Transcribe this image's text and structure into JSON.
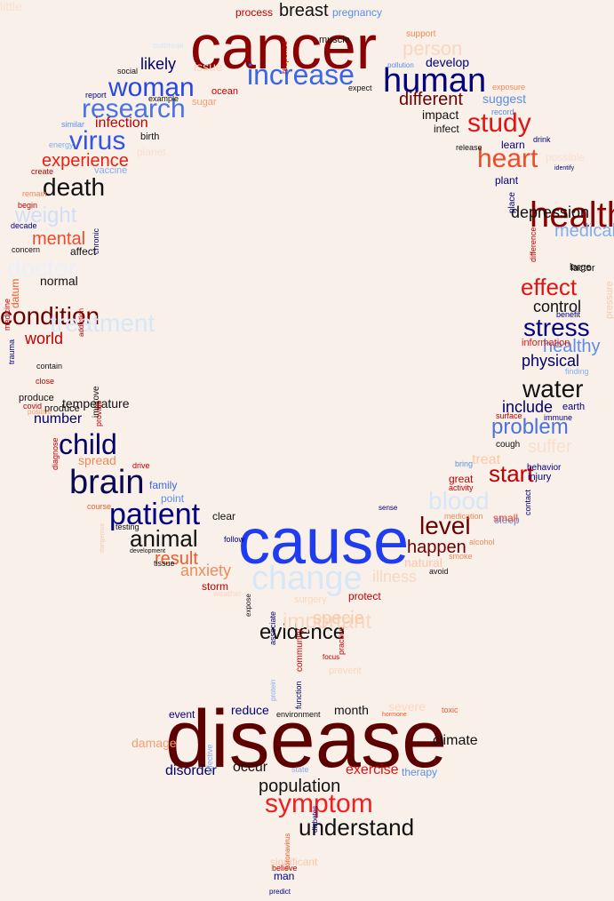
{
  "words": [
    {
      "text": "cancer",
      "size": 70,
      "color": "#8b0000"
    },
    {
      "text": "cause",
      "size": 72,
      "color": "#1f3cf0"
    },
    {
      "text": "disease",
      "size": 92,
      "color": "#5c0000"
    },
    {
      "text": "increase",
      "size": 32,
      "color": "#3a66e8"
    },
    {
      "text": "human",
      "size": 38,
      "color": "#000080"
    },
    {
      "text": "woman",
      "size": 30,
      "color": "#2846e0"
    },
    {
      "text": "research",
      "size": 30,
      "color": "#4a72e0"
    },
    {
      "text": "virus",
      "size": 30,
      "color": "#3354e4"
    },
    {
      "text": "study",
      "size": 30,
      "color": "#e01414"
    },
    {
      "text": "heart",
      "size": 30,
      "color": "#f04a2a"
    },
    {
      "text": "health",
      "size": 40,
      "color": "#8b0000"
    },
    {
      "text": "brain",
      "size": 38,
      "color": "#0a0a50"
    },
    {
      "text": "patient",
      "size": 34,
      "color": "#000080"
    },
    {
      "text": "child",
      "size": 32,
      "color": "#000066"
    },
    {
      "text": "death",
      "size": 28,
      "color": "#111111"
    },
    {
      "text": "water",
      "size": 28,
      "color": "#111111"
    },
    {
      "text": "stress",
      "size": 28,
      "color": "#000080"
    },
    {
      "text": "effect",
      "size": 26,
      "color": "#e01414"
    },
    {
      "text": "problem",
      "size": 24,
      "color": "#4a72e0"
    },
    {
      "text": "animal",
      "size": 26,
      "color": "#111111"
    },
    {
      "text": "level",
      "size": 28,
      "color": "#6b0000"
    },
    {
      "text": "change",
      "size": 38,
      "color": "#d6e8f8"
    },
    {
      "text": "blood",
      "size": 28,
      "color": "#d6e8f8"
    },
    {
      "text": "doctor",
      "size": 28,
      "color": "#e8f0fa"
    },
    {
      "text": "weight",
      "size": 24,
      "color": "#cfe0f6"
    },
    {
      "text": "person",
      "size": 22,
      "color": "#fbd6c0"
    },
    {
      "text": "condition",
      "size": 28,
      "color": "#6b0000"
    },
    {
      "text": "treatment",
      "size": 28,
      "color": "#d6e8f8"
    },
    {
      "text": "symptom",
      "size": 30,
      "color": "#f02020"
    },
    {
      "text": "understand",
      "size": 26,
      "color": "#111111"
    },
    {
      "text": "evidence",
      "size": 24,
      "color": "#111111"
    },
    {
      "text": "important",
      "size": 24,
      "color": "#fbd6c0"
    },
    {
      "text": "specie",
      "size": 20,
      "color": "#fbc8a8"
    },
    {
      "text": "population",
      "size": 20,
      "color": "#111111"
    },
    {
      "text": "breast",
      "size": 20,
      "color": "#111111"
    },
    {
      "text": "experience",
      "size": 20,
      "color": "#e82010"
    },
    {
      "text": "mental",
      "size": 20,
      "color": "#f04a2a"
    },
    {
      "text": "different",
      "size": 20,
      "color": "#6b0000"
    },
    {
      "text": "result",
      "size": 20,
      "color": "#f05a2a"
    },
    {
      "text": "happen",
      "size": 20,
      "color": "#6b0000"
    },
    {
      "text": "start",
      "size": 26,
      "color": "#c00000"
    },
    {
      "text": "medical",
      "size": 20,
      "color": "#80aef0"
    },
    {
      "text": "depression",
      "size": 18,
      "color": "#111111"
    },
    {
      "text": "healthy",
      "size": 20,
      "color": "#5a8ee8"
    },
    {
      "text": "physical",
      "size": 18,
      "color": "#000066"
    },
    {
      "text": "control",
      "size": 18,
      "color": "#111111"
    },
    {
      "text": "include",
      "size": 18,
      "color": "#000066"
    },
    {
      "text": "suffer",
      "size": 20,
      "color": "#f8e0d0"
    },
    {
      "text": "world",
      "size": 18,
      "color": "#c00000"
    },
    {
      "text": "anxiety",
      "size": 18,
      "color": "#f08a5a"
    },
    {
      "text": "illness",
      "size": 18,
      "color": "#f8d8c0"
    },
    {
      "text": "natural",
      "size": 14,
      "color": "#fbc8a8"
    },
    {
      "text": "likely",
      "size": 18,
      "color": "#000066"
    },
    {
      "text": "infection",
      "size": 16,
      "color": "#c00000"
    },
    {
      "text": "number",
      "size": 16,
      "color": "#000066"
    },
    {
      "text": "spread",
      "size": 14,
      "color": "#f08a5a"
    },
    {
      "text": "temperature",
      "size": 14,
      "color": "#111111"
    },
    {
      "text": "normal",
      "size": 14,
      "color": "#111111"
    },
    {
      "text": "develop",
      "size": 14,
      "color": "#000080"
    },
    {
      "text": "suggest",
      "size": 14,
      "color": "#5a8ee8"
    },
    {
      "text": "impact",
      "size": 14,
      "color": "#111111"
    },
    {
      "text": "climate",
      "size": 16,
      "color": "#111111"
    },
    {
      "text": "exercise",
      "size": 16,
      "color": "#e01414"
    },
    {
      "text": "disorder",
      "size": 16,
      "color": "#000066"
    },
    {
      "text": "occur",
      "size": 16,
      "color": "#111111"
    },
    {
      "text": "month",
      "size": 14,
      "color": "#111111"
    },
    {
      "text": "reduce",
      "size": 14,
      "color": "#000080"
    },
    {
      "text": "damage",
      "size": 14,
      "color": "#f0a070"
    },
    {
      "text": "severe",
      "size": 14,
      "color": "#fbd6c0"
    },
    {
      "text": "storm",
      "size": 12,
      "color": "#c00000"
    },
    {
      "text": "treat",
      "size": 16,
      "color": "#fbc8a8"
    },
    {
      "text": "sleep",
      "size": 12,
      "color": "#5a8ee8"
    },
    {
      "text": "family",
      "size": 12,
      "color": "#3a66e8"
    },
    {
      "text": "pregnancy",
      "size": 12,
      "color": "#5a8ee8"
    },
    {
      "text": "process",
      "size": 12,
      "color": "#c00000"
    },
    {
      "text": "issue",
      "size": 14,
      "color": "#f8d8c0"
    },
    {
      "text": "affect",
      "size": 12,
      "color": "#111111"
    },
    {
      "text": "point",
      "size": 12,
      "color": "#5a8ee8"
    },
    {
      "text": "clear",
      "size": 12,
      "color": "#111111"
    },
    {
      "text": "great",
      "size": 12,
      "color": "#c00000"
    },
    {
      "text": "small",
      "size": 12,
      "color": "#f04a2a"
    },
    {
      "text": "protect",
      "size": 12,
      "color": "#c00000"
    },
    {
      "text": "event",
      "size": 12,
      "color": "#000080"
    },
    {
      "text": "therapy",
      "size": 12,
      "color": "#5a8ee8"
    },
    {
      "text": "man",
      "size": 12,
      "color": "#000080"
    },
    {
      "text": "infect",
      "size": 12,
      "color": "#111111"
    },
    {
      "text": "learn",
      "size": 12,
      "color": "#000080"
    },
    {
      "text": "plant",
      "size": 12,
      "color": "#000080"
    },
    {
      "text": "factor",
      "size": 11,
      "color": "#111111"
    },
    {
      "text": "large",
      "size": 11,
      "color": "#111111"
    },
    {
      "text": "earth",
      "size": 11,
      "color": "#000080"
    },
    {
      "text": "injury",
      "size": 11,
      "color": "#000080"
    },
    {
      "text": "behavior",
      "size": 10,
      "color": "#000080"
    },
    {
      "text": "cough",
      "size": 10,
      "color": "#111111"
    },
    {
      "text": "produce",
      "size": 11,
      "color": "#111111"
    },
    {
      "text": "produce",
      "size": 11,
      "color": "#111111"
    },
    {
      "text": "vaccine",
      "size": 11,
      "color": "#80aef0"
    },
    {
      "text": "birth",
      "size": 11,
      "color": "#111111"
    },
    {
      "text": "example",
      "size": 9,
      "color": "#111111"
    },
    {
      "text": "similar",
      "size": 9,
      "color": "#5a8ee8"
    },
    {
      "text": "energy",
      "size": 9,
      "color": "#80aef0"
    },
    {
      "text": "create",
      "size": 9,
      "color": "#c00000"
    },
    {
      "text": "remain",
      "size": 9,
      "color": "#f08a5a"
    },
    {
      "text": "begin",
      "size": 9,
      "color": "#c00000"
    },
    {
      "text": "decade",
      "size": 9,
      "color": "#000080"
    },
    {
      "text": "concern",
      "size": 9,
      "color": "#111111"
    },
    {
      "text": "report",
      "size": 9,
      "color": "#000080"
    },
    {
      "text": "social",
      "size": 9,
      "color": "#111111"
    },
    {
      "text": "ocean",
      "size": 11,
      "color": "#c00000"
    },
    {
      "text": "sugar",
      "size": 11,
      "color": "#f0a070"
    },
    {
      "text": "pollution",
      "size": 8,
      "color": "#5a8ee8"
    },
    {
      "text": "muscle",
      "size": 11,
      "color": "#111111"
    },
    {
      "text": "expect",
      "size": 9,
      "color": "#111111"
    },
    {
      "text": "exposure",
      "size": 9,
      "color": "#f08a5a"
    },
    {
      "text": "record",
      "size": 9,
      "color": "#5a8ee8"
    },
    {
      "text": "release",
      "size": 9,
      "color": "#111111"
    },
    {
      "text": "drink",
      "size": 9,
      "color": "#000080"
    },
    {
      "text": "surface",
      "size": 9,
      "color": "#c00000"
    },
    {
      "text": "immune",
      "size": 9,
      "color": "#000080"
    },
    {
      "text": "benefit",
      "size": 9,
      "color": "#000080"
    },
    {
      "text": "information",
      "size": 11,
      "color": "#e01414"
    },
    {
      "text": "bring",
      "size": 9,
      "color": "#5a8ee8"
    },
    {
      "text": "activity",
      "size": 9,
      "color": "#c00000"
    },
    {
      "text": "medication",
      "size": 9,
      "color": "#f08a5a"
    },
    {
      "text": "alcohol",
      "size": 9,
      "color": "#f08a5a"
    },
    {
      "text": "smoke",
      "size": 9,
      "color": "#f08a5a"
    },
    {
      "text": "avoid",
      "size": 9,
      "color": "#111111"
    },
    {
      "text": "follow",
      "size": 9,
      "color": "#000080"
    },
    {
      "text": "testing",
      "size": 9,
      "color": "#111111"
    },
    {
      "text": "development",
      "size": 7,
      "color": "#111111"
    },
    {
      "text": "tissue",
      "size": 9,
      "color": "#111111"
    },
    {
      "text": "course",
      "size": 9,
      "color": "#f05a2a"
    },
    {
      "text": "drive",
      "size": 9,
      "color": "#c00000"
    },
    {
      "text": "contain",
      "size": 9,
      "color": "#111111"
    },
    {
      "text": "close",
      "size": 9,
      "color": "#c00000"
    },
    {
      "text": "covid",
      "size": 9,
      "color": "#c00000"
    },
    {
      "text": "positive",
      "size": 8,
      "color": "#f0a070"
    },
    {
      "text": "hormone",
      "size": 7,
      "color": "#f05a2a"
    },
    {
      "text": "environment",
      "size": 9,
      "color": "#111111"
    },
    {
      "text": "toxic",
      "size": 9,
      "color": "#f05a2a"
    },
    {
      "text": "state",
      "size": 9,
      "color": "#80aef0"
    },
    {
      "text": "significant",
      "size": 12,
      "color": "#fbc8a8"
    },
    {
      "text": "believe",
      "size": 9,
      "color": "#c00000"
    },
    {
      "text": "predict",
      "size": 8,
      "color": "#000080"
    },
    {
      "text": "focus",
      "size": 8,
      "color": "#c00000"
    },
    {
      "text": "sense",
      "size": 8,
      "color": "#000080"
    },
    {
      "text": "surgery",
      "size": 11,
      "color": "#f8d8c0"
    },
    {
      "text": "weather",
      "size": 9,
      "color": "#fbd6c0"
    },
    {
      "text": "outbreak",
      "size": 9,
      "color": "#d6e8f8"
    },
    {
      "text": "planet",
      "size": 12,
      "color": "#f8e0d0"
    },
    {
      "text": "identify",
      "size": 7,
      "color": "#000080"
    },
    {
      "text": "finding",
      "size": 9,
      "color": "#80aef0"
    },
    {
      "text": "prevent",
      "size": 11,
      "color": "#fbd6c0"
    },
    {
      "text": "support",
      "size": 10,
      "color": "#f08a5a"
    },
    {
      "text": "response",
      "size": 9,
      "color": "#c00000",
      "rot": -90
    },
    {
      "text": "possible",
      "size": 12,
      "color": "#f8e0d0"
    },
    {
      "text": "place",
      "size": 10,
      "color": "#000080",
      "rot": -90
    },
    {
      "text": "difference",
      "size": 9,
      "color": "#c00000",
      "rot": -90
    },
    {
      "text": "pressure",
      "size": 11,
      "color": "#fbc8a8",
      "rot": -90
    },
    {
      "text": "contact",
      "size": 9,
      "color": "#000080",
      "rot": -90
    },
    {
      "text": "chronic",
      "size": 9,
      "color": "#000080",
      "rot": -90
    },
    {
      "text": "medicine",
      "size": 9,
      "color": "#c00000",
      "rot": -90
    },
    {
      "text": "datum",
      "size": 12,
      "color": "#f05a2a",
      "rot": -90
    },
    {
      "text": "addiction",
      "size": 8,
      "color": "#c00000",
      "rot": -90
    },
    {
      "text": "trauma",
      "size": 9,
      "color": "#000080",
      "rot": -90
    },
    {
      "text": "improve",
      "size": 10,
      "color": "#111111",
      "rot": -90
    },
    {
      "text": "provide",
      "size": 9,
      "color": "#c00000",
      "rot": -90
    },
    {
      "text": "diagnose",
      "size": 9,
      "color": "#c00000",
      "rot": -90
    },
    {
      "text": "dangerous",
      "size": 7,
      "color": "#fbc8a8",
      "rot": -90
    },
    {
      "text": "protein",
      "size": 8,
      "color": "#80aef0",
      "rot": -90
    },
    {
      "text": "function",
      "size": 9,
      "color": "#000080",
      "rot": -90
    },
    {
      "text": "community",
      "size": 10,
      "color": "#c00000",
      "rot": -90
    },
    {
      "text": "practice",
      "size": 9,
      "color": "#c00000",
      "rot": -90
    },
    {
      "text": "associate",
      "size": 9,
      "color": "#000080",
      "rot": -90
    },
    {
      "text": "effective",
      "size": 9,
      "color": "#80aef0",
      "rot": -90
    },
    {
      "text": "diabetes",
      "size": 8,
      "color": "#000080",
      "rot": -90
    },
    {
      "text": "coronavirus",
      "size": 8,
      "color": "#f05a2a",
      "rot": -90
    },
    {
      "text": "expose",
      "size": 8,
      "color": "#111111",
      "rot": -90
    },
    {
      "text": "little",
      "size": 14,
      "color": "#f8e0d0"
    }
  ]
}
